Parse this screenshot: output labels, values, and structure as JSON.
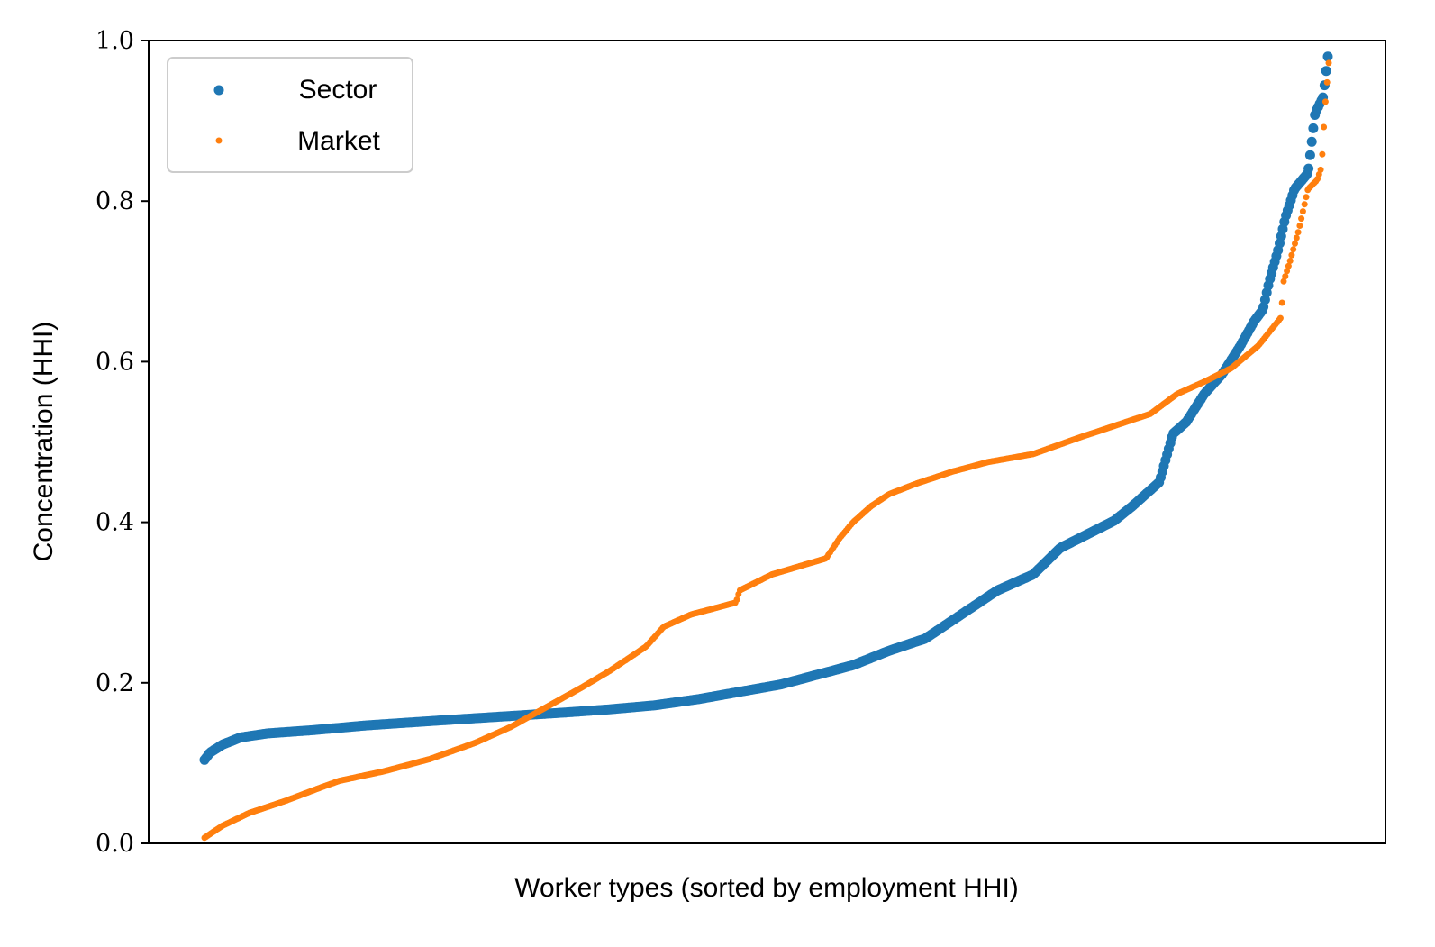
{
  "chart_data": {
    "type": "scatter",
    "xlabel": "Worker types (sorted by employment HHI)",
    "ylabel": "Concentration (HHI)",
    "ylim": [
      0.0,
      1.0
    ],
    "yticks": [
      "0.0",
      "0.2",
      "0.4",
      "0.6",
      "0.8",
      "1.0"
    ],
    "xticks": [],
    "grid": false,
    "legend_position": "upper-left",
    "n_points": 700,
    "series": [
      {
        "name": "Sector",
        "color": "#1f77b4",
        "marker_size": "large",
        "knots": [
          [
            0,
            0.104
          ],
          [
            6,
            0.113
          ],
          [
            20,
            0.123
          ],
          [
            40,
            0.132
          ],
          [
            70,
            0.137
          ],
          [
            120,
            0.141
          ],
          [
            180,
            0.147
          ],
          [
            260,
            0.153
          ],
          [
            330,
            0.158
          ],
          [
            400,
            0.163
          ],
          [
            450,
            0.167
          ],
          [
            500,
            0.172
          ],
          [
            550,
            0.18
          ],
          [
            600,
            0.19
          ],
          [
            640,
            0.198
          ],
          [
            680,
            0.21
          ],
          [
            720,
            0.222
          ],
          [
            760,
            0.24
          ],
          [
            800,
            0.255
          ],
          [
            840,
            0.285
          ],
          [
            880,
            0.315
          ],
          [
            920,
            0.335
          ],
          [
            950,
            0.368
          ],
          [
            980,
            0.385
          ],
          [
            1010,
            0.402
          ],
          [
            1030,
            0.42
          ],
          [
            1060,
            0.45
          ],
          [
            1075,
            0.51
          ],
          [
            1090,
            0.525
          ],
          [
            1110,
            0.56
          ],
          [
            1130,
            0.585
          ],
          [
            1150,
            0.62
          ],
          [
            1165,
            0.65
          ],
          [
            1175,
            0.665
          ],
          [
            1182,
            0.7
          ],
          [
            1192,
            0.74
          ],
          [
            1200,
            0.78
          ],
          [
            1210,
            0.815
          ],
          [
            1225,
            0.835
          ],
          [
            1233,
            0.91
          ],
          [
            1242,
            0.93
          ],
          [
            1247,
            0.98
          ]
        ]
      },
      {
        "name": "Market",
        "color": "#ff7f0e",
        "marker_size": "small",
        "knots": [
          [
            0,
            0.007
          ],
          [
            20,
            0.022
          ],
          [
            50,
            0.038
          ],
          [
            90,
            0.053
          ],
          [
            130,
            0.07
          ],
          [
            150,
            0.078
          ],
          [
            200,
            0.09
          ],
          [
            250,
            0.105
          ],
          [
            300,
            0.125
          ],
          [
            340,
            0.145
          ],
          [
            380,
            0.17
          ],
          [
            420,
            0.195
          ],
          [
            450,
            0.215
          ],
          [
            490,
            0.245
          ],
          [
            510,
            0.27
          ],
          [
            540,
            0.285
          ],
          [
            590,
            0.3
          ],
          [
            594,
            0.315
          ],
          [
            630,
            0.335
          ],
          [
            690,
            0.355
          ],
          [
            705,
            0.38
          ],
          [
            720,
            0.4
          ],
          [
            740,
            0.42
          ],
          [
            760,
            0.435
          ],
          [
            790,
            0.448
          ],
          [
            830,
            0.463
          ],
          [
            870,
            0.475
          ],
          [
            920,
            0.485
          ],
          [
            970,
            0.505
          ],
          [
            1010,
            0.52
          ],
          [
            1050,
            0.535
          ],
          [
            1080,
            0.56
          ],
          [
            1110,
            0.575
          ],
          [
            1140,
            0.592
          ],
          [
            1170,
            0.62
          ],
          [
            1195,
            0.655
          ],
          [
            1198,
            0.7
          ],
          [
            1205,
            0.725
          ],
          [
            1215,
            0.765
          ],
          [
            1225,
            0.815
          ],
          [
            1235,
            0.826
          ],
          [
            1240,
            0.842
          ],
          [
            1244,
            0.918
          ],
          [
            1248,
            0.972
          ]
        ]
      }
    ]
  }
}
